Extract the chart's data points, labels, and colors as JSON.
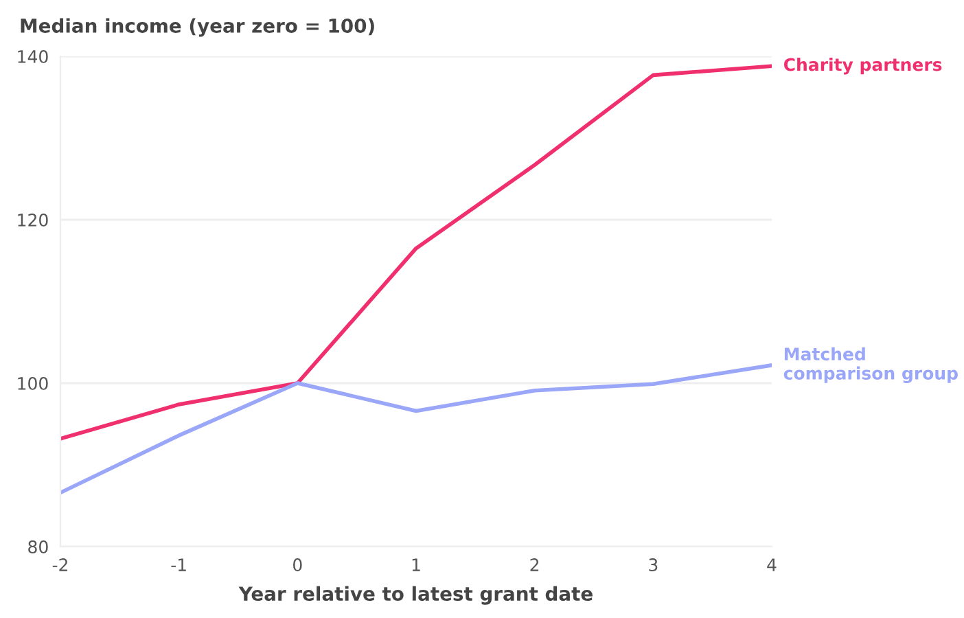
{
  "chart_data": {
    "type": "line",
    "title": "Median income (year zero = 100)",
    "xlabel": "Year relative to latest grant date",
    "x": [
      -2,
      -1,
      0,
      1,
      2,
      3,
      4
    ],
    "series": [
      {
        "name": "Charity partners",
        "color": "#f0306e",
        "values": [
          93.2,
          97.4,
          100,
          116.5,
          126.7,
          137.7,
          138.8
        ]
      },
      {
        "name": "Matched comparison group",
        "color": "#9aa6f8",
        "values": [
          86.6,
          93.6,
          100,
          96.6,
          99.1,
          99.9,
          102.2
        ]
      }
    ],
    "xlim": [
      -2,
      4
    ],
    "xticks": [
      -2,
      -1,
      0,
      1,
      2,
      3,
      4
    ],
    "ylim": [
      80,
      140
    ],
    "yticks": [
      80,
      100,
      120,
      140
    ],
    "grid": "y",
    "legend": false,
    "marker": "none",
    "line_style": "solid"
  }
}
